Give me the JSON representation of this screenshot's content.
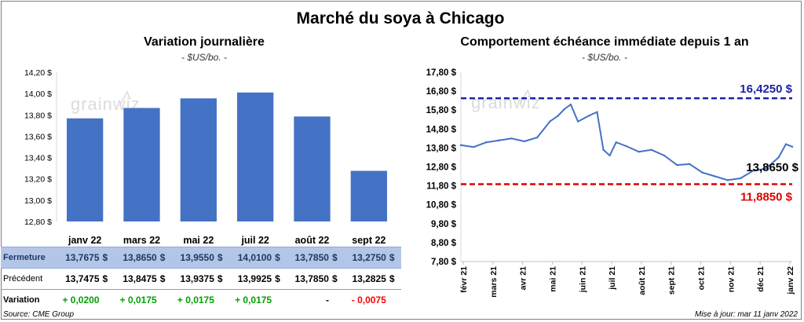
{
  "title": "Marché du soya à Chicago",
  "source": "Source: CME Group",
  "updated": "Mise à jour: mar 11 janv 2022",
  "watermark": "grainwiz",
  "colors": {
    "bar": "#4472c4",
    "line": "#4472c4",
    "high": "#1f1fa8",
    "low": "#e00000",
    "table_header": "#b4c6e7",
    "positive": "#00a000",
    "negative": "#ff0000"
  },
  "table": {
    "row_labels": {
      "close": "Fermeture",
      "prev": "Précédent",
      "var": "Variation"
    },
    "currency": "$",
    "close": [
      "13,7675",
      "13,8650",
      "13,9550",
      "14,0100",
      "13,7850",
      "13,2750"
    ],
    "prev": [
      "13,7475",
      "13,8475",
      "13,9375",
      "13,9925",
      "13,7850",
      "13,2825"
    ],
    "var": [
      "+ 0,0200",
      "+ 0,0175",
      "+ 0,0175",
      "+ 0,0175",
      "-",
      "- 0,0075"
    ]
  },
  "chart_data": [
    {
      "type": "bar",
      "title": "Variation journalière",
      "subtitle": "- $US/bo. -",
      "categories": [
        "janv 22",
        "mars 22",
        "mai 22",
        "juil 22",
        "août 22",
        "sept 22"
      ],
      "values": [
        13.7675,
        13.865,
        13.955,
        14.01,
        13.785,
        13.275
      ],
      "ylim": [
        12.8,
        14.2
      ],
      "yticks": [
        "12,80 $",
        "13,00 $",
        "13,20 $",
        "13,40 $",
        "13,60 $",
        "13,80 $",
        "14,00 $",
        "14,20 $"
      ],
      "grid": false
    },
    {
      "type": "line",
      "title": "Comportement échéance immédiate depuis 1 an",
      "subtitle": "- $US/bo. -",
      "ylim": [
        7.8,
        17.8
      ],
      "yticks": [
        "7,80 $",
        "8,80 $",
        "9,80 $",
        "10,80 $",
        "11,80 $",
        "12,80 $",
        "13,80 $",
        "14,80 $",
        "15,80 $",
        "16,80 $",
        "17,80 $"
      ],
      "xlabels": [
        "févr 21",
        "mars 21",
        "avr 21",
        "mai 21",
        "juin 21",
        "juil 21",
        "août 21",
        "sept 21",
        "oct 21",
        "nov 21",
        "déc 21",
        "janv 22"
      ],
      "x": [
        "2021-01-11",
        "2021-01-25",
        "2021-02-08",
        "2021-02-22",
        "2021-03-08",
        "2021-03-22",
        "2021-04-05",
        "2021-04-19",
        "2021-04-28",
        "2021-05-05",
        "2021-05-12",
        "2021-05-20",
        "2021-06-01",
        "2021-06-10",
        "2021-06-17",
        "2021-06-24",
        "2021-07-01",
        "2021-07-12",
        "2021-07-26",
        "2021-08-09",
        "2021-08-23",
        "2021-09-06",
        "2021-09-20",
        "2021-10-04",
        "2021-10-18",
        "2021-11-01",
        "2021-11-15",
        "2021-11-29",
        "2021-12-13",
        "2021-12-27",
        "2022-01-04",
        "2022-01-11"
      ],
      "y": [
        13.95,
        13.85,
        14.1,
        14.2,
        14.3,
        14.15,
        14.35,
        15.2,
        15.5,
        15.85,
        16.1,
        15.2,
        15.5,
        15.7,
        13.7,
        13.4,
        14.1,
        13.9,
        13.6,
        13.7,
        13.4,
        12.9,
        12.95,
        12.5,
        12.3,
        12.1,
        12.2,
        12.6,
        12.7,
        13.3,
        14.0,
        13.865
      ],
      "reference_lines": [
        {
          "label": "16,4250 $",
          "value": 16.425
        },
        {
          "label": "11,8850 $",
          "value": 11.885
        }
      ],
      "last_label": "13,8650 $",
      "grid": false
    }
  ]
}
